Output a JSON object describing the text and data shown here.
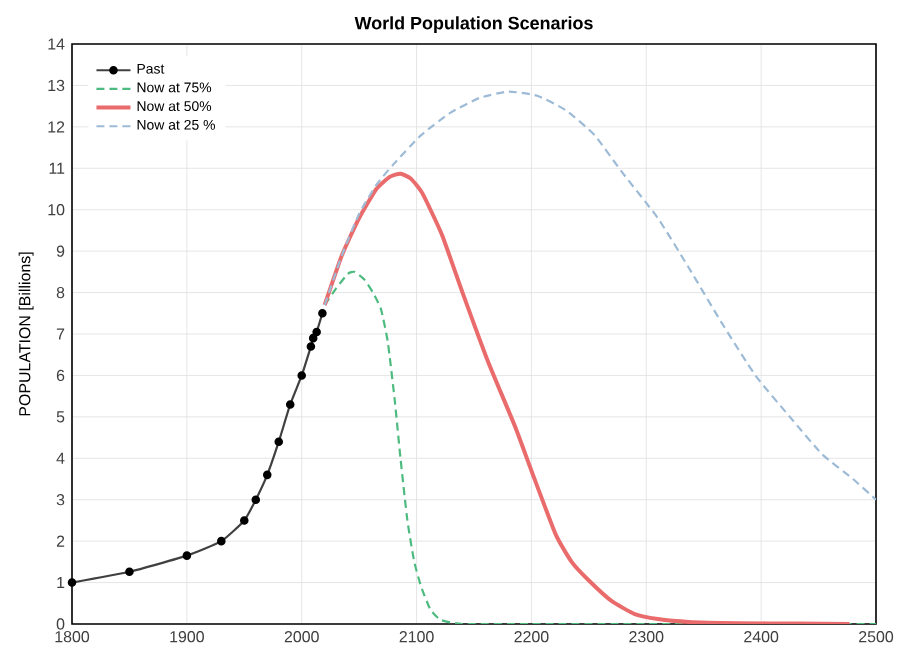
{
  "chart_data": {
    "type": "line",
    "title": "World Population Scenarios",
    "ylabel": "POPULATION [Billions]",
    "xlim": [
      1800,
      2500
    ],
    "xticks": [
      1800,
      1900,
      2000,
      2100,
      2200,
      2300,
      2400,
      2500
    ],
    "ylim": [
      0,
      14
    ],
    "yticks": [
      0,
      1,
      2,
      3,
      4,
      5,
      6,
      7,
      8,
      9,
      10,
      11,
      12,
      13,
      14
    ],
    "grid": true,
    "legend": "top left",
    "series": [
      {
        "name": "Past",
        "color": "#404040",
        "marker": "circle",
        "line_style": "solid",
        "x": [
          1800,
          1850,
          1900,
          1930,
          1950,
          1960,
          1970,
          1980,
          1990,
          2000,
          2008,
          2010,
          2013,
          2018
        ],
        "values": [
          1.0,
          1.26,
          1.65,
          2.0,
          2.5,
          3.0,
          3.6,
          4.4,
          5.3,
          6.0,
          6.7,
          6.9,
          7.05,
          7.5
        ]
      },
      {
        "name": "Now at 75%",
        "color": "#4dbb7f",
        "marker": "none",
        "line_style": "dashed",
        "x": [
          2020,
          2030,
          2040,
          2046,
          2055,
          2062,
          2069,
          2075,
          2081,
          2086,
          2092,
          2098,
          2104,
          2112,
          2121,
          2140,
          2200,
          2300,
          2400,
          2500
        ],
        "values": [
          7.7,
          8.1,
          8.45,
          8.5,
          8.3,
          8.0,
          7.6,
          6.8,
          5.4,
          4.0,
          2.5,
          1.5,
          0.9,
          0.35,
          0.1,
          0.0,
          0.0,
          0.0,
          0.0,
          0.0
        ]
      },
      {
        "name": "Now at 50%",
        "color": "#ea6b6b",
        "marker": "none",
        "line_style": "solid",
        "x": [
          2020,
          2035,
          2050,
          2065,
          2077,
          2086,
          2095,
          2105,
          2122,
          2140,
          2162,
          2186,
          2200,
          2221,
          2235,
          2250,
          2270,
          2290,
          2310,
          2337,
          2380,
          2430,
          2477
        ],
        "values": [
          7.7,
          8.9,
          9.8,
          10.5,
          10.8,
          10.87,
          10.75,
          10.4,
          9.4,
          8.0,
          6.35,
          4.75,
          3.7,
          2.17,
          1.5,
          1.05,
          0.55,
          0.24,
          0.12,
          0.05,
          0.02,
          0.01,
          0.0
        ]
      },
      {
        "name": "Now at 25 %",
        "color": "#9dbbd6",
        "marker": "none",
        "line_style": "dashed",
        "x": [
          2020,
          2035,
          2050,
          2065,
          2080,
          2104,
          2130,
          2155,
          2180,
          2205,
          2230,
          2255,
          2279,
          2310,
          2337,
          2365,
          2395,
          2425,
          2453,
          2480,
          2500
        ],
        "values": [
          7.7,
          8.9,
          9.9,
          10.6,
          11.1,
          11.8,
          12.35,
          12.7,
          12.85,
          12.75,
          12.4,
          11.8,
          10.9,
          9.8,
          8.6,
          7.3,
          6.0,
          5.0,
          4.1,
          3.5,
          3.0
        ]
      }
    ]
  }
}
